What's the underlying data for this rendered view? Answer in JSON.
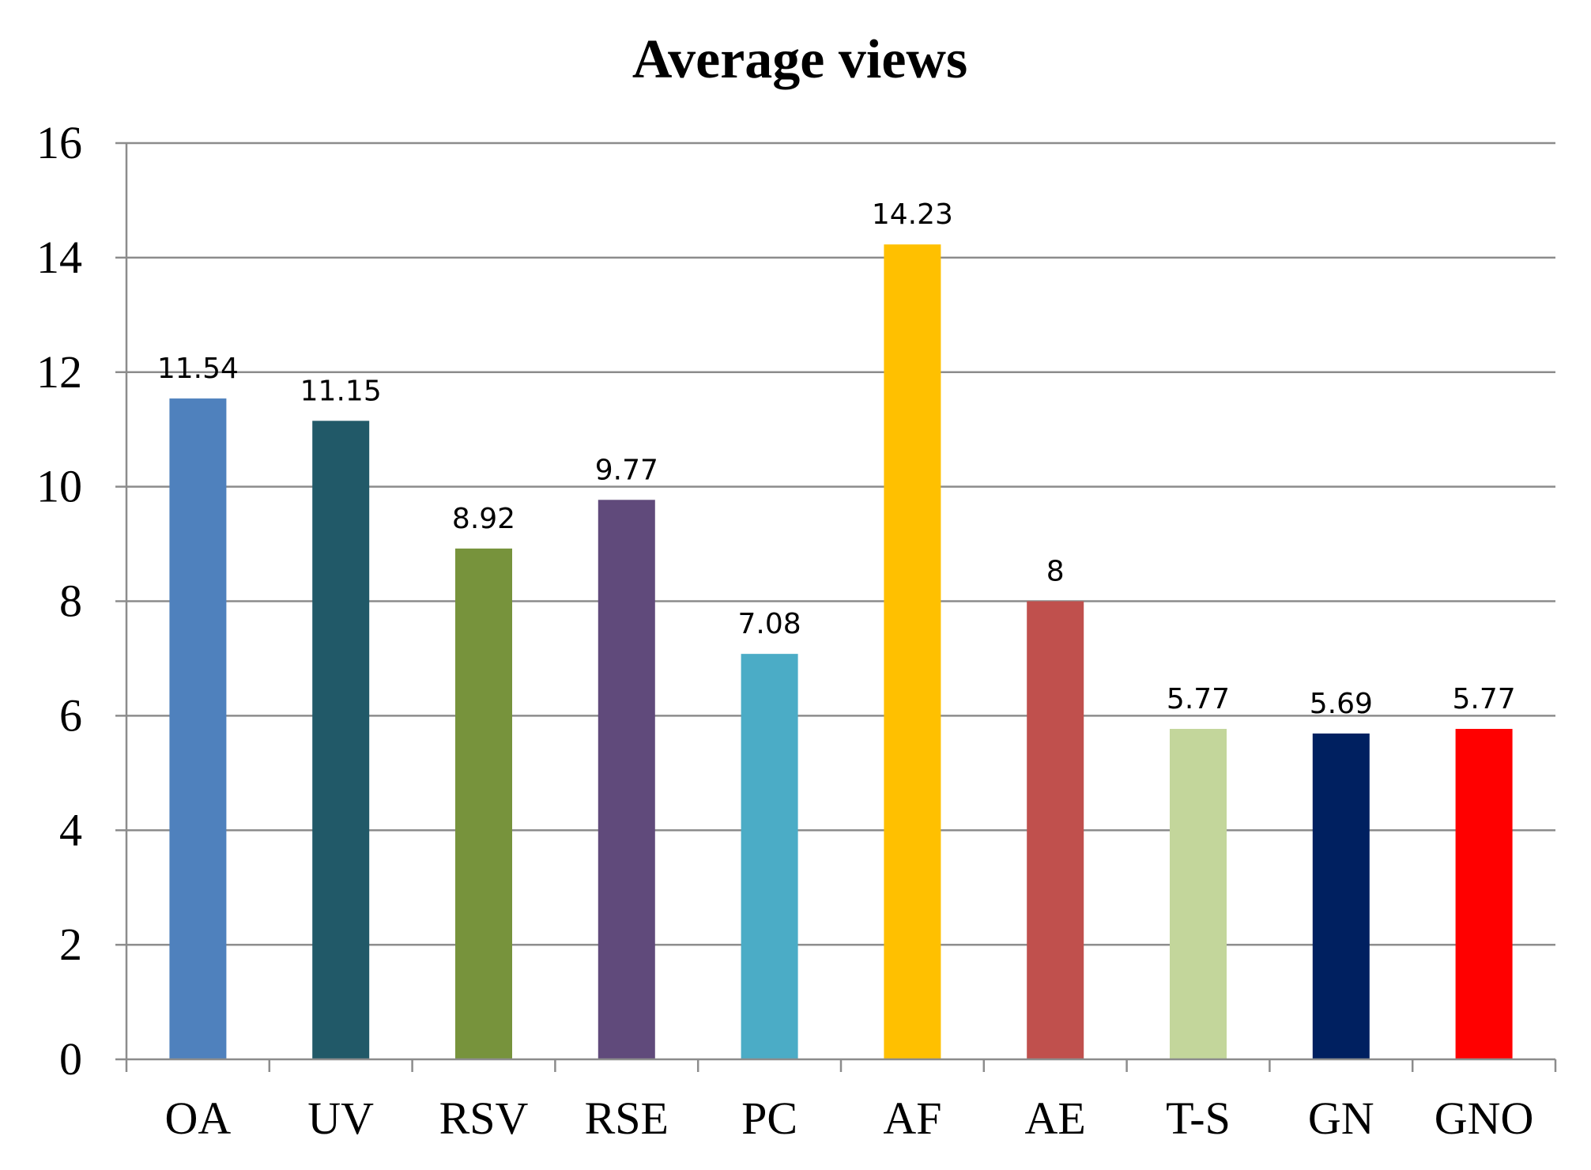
{
  "chart_data": {
    "type": "bar",
    "title": "Average views",
    "xlabel": "",
    "ylabel": "",
    "categories": [
      "OA",
      "UV",
      "RSV",
      "RSE",
      "PC",
      "AF",
      "AE",
      "T-S",
      "GN",
      "GNO"
    ],
    "values": [
      11.54,
      11.15,
      8.92,
      9.77,
      7.08,
      14.23,
      8,
      5.77,
      5.69,
      5.77
    ],
    "value_labels": [
      "11.54",
      "11.15",
      "8.92",
      "9.77",
      "7.08",
      "14.23",
      "8",
      "5.77",
      "5.69",
      "5.77"
    ],
    "colors": [
      "#4f81bd",
      "#215968",
      "#77933c",
      "#604a7b",
      "#4bacc6",
      "#ffc000",
      "#c0504d",
      "#c3d69b",
      "#002060",
      "#ff0000"
    ],
    "ylim": [
      0,
      16
    ],
    "yticks": [
      0,
      2,
      4,
      6,
      8,
      10,
      12,
      14,
      16
    ],
    "ytick_labels": [
      "0",
      "2",
      "4",
      "6",
      "8",
      "10",
      "12",
      "14",
      "16"
    ],
    "grid": true,
    "legend": "none"
  }
}
